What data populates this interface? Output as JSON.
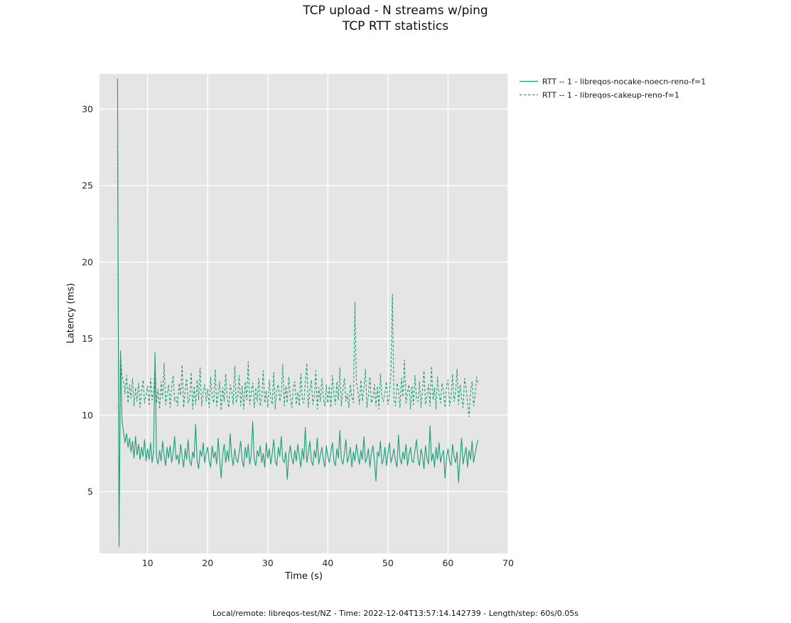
{
  "chart_data": {
    "type": "line",
    "title": "TCP upload - N streams w/ping",
    "subtitle": "TCP RTT statistics",
    "xlabel": "Time (s)",
    "ylabel": "Latency (ms)",
    "footnote": "Local/remote: libreqos-test/NZ - Time: 2022-12-04T13:57:14.142739 - Length/step: 60s/0.05s",
    "xlim": [
      2,
      70
    ],
    "ylim": [
      0.97,
      32.3
    ],
    "xticks": [
      10,
      20,
      30,
      40,
      50,
      60,
      70
    ],
    "yticks": [
      5,
      10,
      15,
      20,
      25,
      30
    ],
    "grid": true,
    "legend_position": "top-right-outside",
    "colors": {
      "accent": "#1b9e77",
      "plot_bg": "#e5e5e5",
      "grid": "#ffffff",
      "text": "#262626"
    },
    "x_start": 5.0,
    "x_step": 0.25,
    "series": [
      {
        "name": "RTT -- 1 - libreqos-nocake-noecn-reno-f=1",
        "color": "#1b9e77",
        "style": "solid",
        "values": [
          32.0,
          1.4,
          14.2,
          9.6,
          8.9,
          8.2,
          8.8,
          7.9,
          8.5,
          7.6,
          8.3,
          7.2,
          8.6,
          7.4,
          8.1,
          7.1,
          7.9,
          7.3,
          8.4,
          7.0,
          7.8,
          7.1,
          8.2,
          6.9,
          7.6,
          14.1,
          7.2,
          6.8,
          7.7,
          7.0,
          8.3,
          7.4,
          6.7,
          7.9,
          7.2,
          8.0,
          6.9,
          7.5,
          8.6,
          7.1,
          7.4,
          6.8,
          8.1,
          7.3,
          6.6,
          7.8,
          7.1,
          8.4,
          7.0,
          6.7,
          7.6,
          7.2,
          9.4,
          7.0,
          6.5,
          7.7,
          7.3,
          8.2,
          6.9,
          7.5,
          7.9,
          7.0,
          6.6,
          8.0,
          7.2,
          7.6,
          6.8,
          8.5,
          7.1,
          5.9,
          7.4,
          8.1,
          6.9,
          7.7,
          7.0,
          8.8,
          7.3,
          6.7,
          7.8,
          7.1,
          6.9,
          7.6,
          8.3,
          7.0,
          6.6,
          7.9,
          7.2,
          8.1,
          6.8,
          7.4,
          9.6,
          7.1,
          6.7,
          7.7,
          7.3,
          8.0,
          6.9,
          7.5,
          6.6,
          8.2,
          7.2,
          7.8,
          6.8,
          7.5,
          8.4,
          7.0,
          6.7,
          7.9,
          7.3,
          8.6,
          7.1,
          6.9,
          7.6,
          5.8,
          7.4,
          8.0,
          7.2,
          6.8,
          7.7,
          7.0,
          8.1,
          7.3,
          6.6,
          7.8,
          7.1,
          9.2,
          6.9,
          7.5,
          8.3,
          7.0,
          6.7,
          7.7,
          7.2,
          8.5,
          6.8,
          7.4,
          7.9,
          7.1,
          6.6,
          8.0,
          7.3,
          6.9,
          7.6,
          8.2,
          7.0,
          6.7,
          7.8,
          7.2,
          9.0,
          7.1,
          6.8,
          7.5,
          8.4,
          6.9,
          7.3,
          7.9,
          6.6,
          7.6,
          7.0,
          8.1,
          7.4,
          6.8,
          7.7,
          7.1,
          8.6,
          6.9,
          7.2,
          7.8,
          6.6,
          7.5,
          8.0,
          7.0,
          5.7,
          7.6,
          7.3,
          8.3,
          6.8,
          7.1,
          7.9,
          6.7,
          7.5,
          8.2,
          6.9,
          7.3,
          7.8,
          7.0,
          6.6,
          8.7,
          7.2,
          6.8,
          7.6,
          7.1,
          8.1,
          6.7,
          7.4,
          7.9,
          7.0,
          6.9,
          7.7,
          8.4,
          7.1,
          6.7,
          7.8,
          7.3,
          6.5,
          8.0,
          7.2,
          6.8,
          9.3,
          7.0,
          7.5,
          6.6,
          7.9,
          7.1,
          8.2,
          6.9,
          7.4,
          7.7,
          5.9,
          7.2,
          7.8,
          7.0,
          6.7,
          8.1,
          7.3,
          6.9,
          7.6,
          5.6,
          7.2,
          8.5,
          6.8,
          7.4,
          7.9,
          6.6,
          7.7,
          7.1,
          8.3,
          6.9,
          7.5,
          8.0,
          8.4
        ]
      },
      {
        "name": "RTT -- 1 - libreqos-cakeup-reno-f=1",
        "color": "#1b9e77",
        "style": "dashed",
        "values": [
          27.6,
          2.1,
          13.9,
          12.6,
          12.2,
          11.4,
          12.6,
          10.8,
          12.0,
          11.1,
          12.4,
          10.6,
          11.8,
          10.9,
          12.1,
          10.5,
          11.6,
          12.3,
          10.8,
          11.3,
          11.9,
          10.6,
          12.4,
          11.0,
          11.5,
          13.2,
          10.8,
          11.7,
          10.4,
          12.2,
          11.1,
          13.4,
          10.7,
          11.4,
          12.0,
          10.5,
          11.8,
          12.6,
          10.9,
          11.2,
          10.6,
          12.1,
          11.3,
          13.3,
          10.5,
          11.6,
          12.4,
          10.8,
          11.1,
          12.8,
          10.4,
          11.9,
          10.7,
          12.3,
          11.0,
          13.1,
          10.6,
          11.5,
          12.0,
          10.9,
          11.7,
          10.5,
          12.5,
          11.2,
          10.8,
          13.0,
          10.6,
          11.4,
          12.2,
          10.3,
          11.8,
          10.9,
          12.7,
          11.1,
          10.5,
          12.0,
          11.6,
          10.7,
          13.2,
          10.8,
          11.3,
          12.6,
          10.6,
          11.9,
          10.4,
          12.2,
          11.0,
          13.5,
          10.7,
          11.5,
          12.1,
          10.5,
          11.8,
          10.9,
          12.4,
          10.6,
          11.2,
          12.9,
          10.8,
          11.6,
          10.5,
          12.3,
          11.1,
          10.7,
          12.8,
          10.4,
          11.7,
          12.0,
          10.9,
          11.4,
          13.3,
          10.6,
          11.9,
          10.8,
          12.5,
          11.2,
          10.5,
          11.8,
          12.2,
          10.7,
          11.5,
          10.6,
          12.7,
          11.0,
          10.8,
          12.1,
          13.4,
          10.5,
          11.6,
          12.3,
          10.7,
          11.2,
          12.9,
          10.4,
          11.8,
          10.9,
          12.4,
          11.1,
          10.6,
          12.0,
          10.8,
          11.9,
          10.5,
          12.6,
          11.3,
          10.7,
          12.2,
          11.0,
          13.1,
          10.6,
          11.7,
          12.4,
          10.9,
          11.4,
          10.5,
          12.0,
          11.2,
          10.8,
          17.4,
          12.1,
          11.6,
          10.7,
          12.3,
          10.9,
          11.8,
          13.0,
          10.5,
          11.3,
          12.5,
          10.8,
          11.1,
          12.0,
          10.6,
          11.9,
          10.4,
          12.7,
          11.2,
          10.9,
          11.5,
          12.2,
          10.7,
          11.4,
          12.8,
          17.9,
          11.0,
          10.6,
          12.1,
          11.7,
          10.5,
          12.4,
          11.2,
          13.6,
          10.8,
          11.5,
          12.0,
          10.4,
          11.9,
          10.7,
          12.6,
          11.1,
          10.9,
          12.2,
          10.5,
          11.6,
          12.9,
          10.7,
          11.3,
          12.0,
          10.6,
          13.2,
          11.0,
          11.8,
          10.4,
          12.5,
          11.4,
          10.8,
          12.1,
          11.6,
          10.5,
          11.9,
          12.3,
          10.6,
          11.2,
          12.7,
          10.9,
          11.5,
          13.0,
          10.7,
          12.0,
          11.1,
          10.5,
          12.4,
          11.8,
          10.8,
          9.9,
          11.6,
          12.2,
          10.6,
          11.3,
          12.5,
          12.0
        ]
      }
    ]
  }
}
